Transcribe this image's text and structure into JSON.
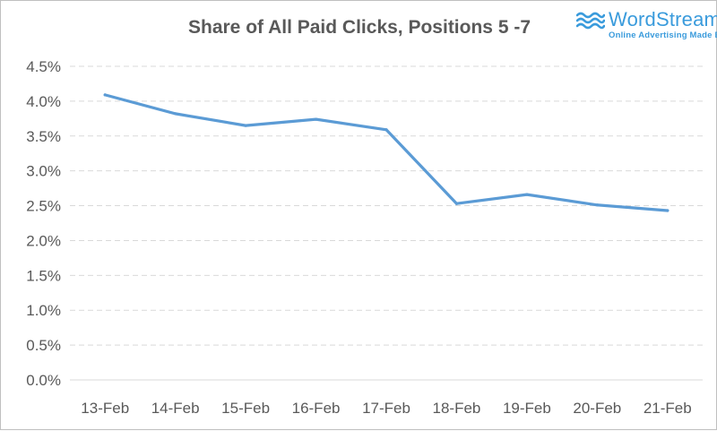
{
  "brand": {
    "name": "WordStream",
    "tagline": "Online Advertising Made Easy",
    "color": "#3a9bdc"
  },
  "chart_data": {
    "type": "line",
    "title": "Share of All Paid Clicks, Positions 5 -7",
    "xlabel": "",
    "ylabel": "",
    "categories": [
      "13-Feb",
      "14-Feb",
      "15-Feb",
      "16-Feb",
      "17-Feb",
      "18-Feb",
      "19-Feb",
      "20-Feb",
      "21-Feb"
    ],
    "series": [
      {
        "values": [
          4.09,
          3.82,
          3.65,
          3.74,
          3.59,
          2.53,
          2.66,
          2.51,
          2.43
        ],
        "color": "#5b9bd5"
      }
    ],
    "ylim": [
      0,
      4.5
    ],
    "yticks": [
      0.0,
      0.5,
      1.0,
      1.5,
      2.0,
      2.5,
      3.0,
      3.5,
      4.0,
      4.5
    ],
    "ytick_labels": [
      "0.0%",
      "0.5%",
      "1.0%",
      "1.5%",
      "2.0%",
      "2.5%",
      "3.0%",
      "3.5%",
      "4.0%",
      "4.5%"
    ],
    "grid": "horizontal-dashed",
    "legend": "none"
  }
}
